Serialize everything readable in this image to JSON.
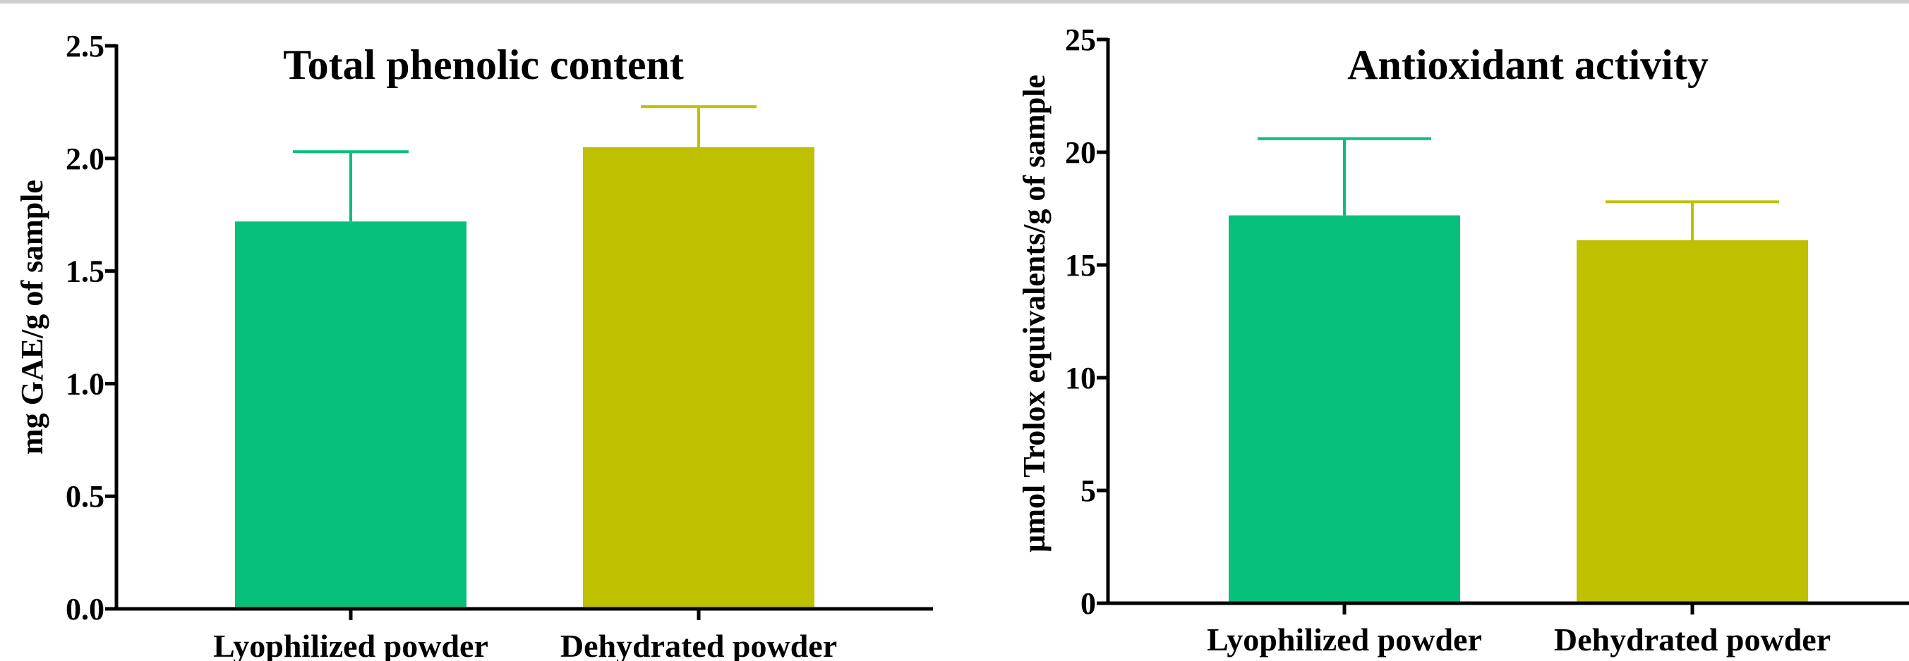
{
  "chart_data": [
    {
      "type": "bar",
      "title": "Total phenolic content",
      "xlabel": "",
      "ylabel": "mg GAE/g of sample",
      "categories": [
        "Lyophilized powder",
        "Dehydrated powder"
      ],
      "values": [
        1.72,
        2.05
      ],
      "errors": [
        0.31,
        0.18
      ],
      "colors": [
        "#07c07b",
        "#bfc000"
      ],
      "ylim": [
        0,
        2.5
      ],
      "yticks": [
        "0.0",
        "0.5",
        "1.0",
        "1.5",
        "2.0",
        "2.5"
      ],
      "ytick_values": [
        0,
        0.5,
        1.0,
        1.5,
        2.0,
        2.5
      ],
      "grid": false,
      "legend": "none"
    },
    {
      "type": "bar",
      "title": "Antioxidant activity",
      "xlabel": "",
      "ylabel": "µmol Trolox equivalents/g of sample",
      "categories": [
        "Lyophilized powder",
        "Dehydrated powder"
      ],
      "values": [
        17.2,
        16.1
      ],
      "errors": [
        3.4,
        1.7
      ],
      "colors": [
        "#07c07b",
        "#bfc000"
      ],
      "ylim": [
        0,
        25
      ],
      "yticks": [
        "0",
        "5",
        "10",
        "15",
        "20",
        "25"
      ],
      "ytick_values": [
        0,
        5,
        10,
        15,
        20,
        25
      ],
      "grid": false,
      "legend": "none"
    }
  ]
}
